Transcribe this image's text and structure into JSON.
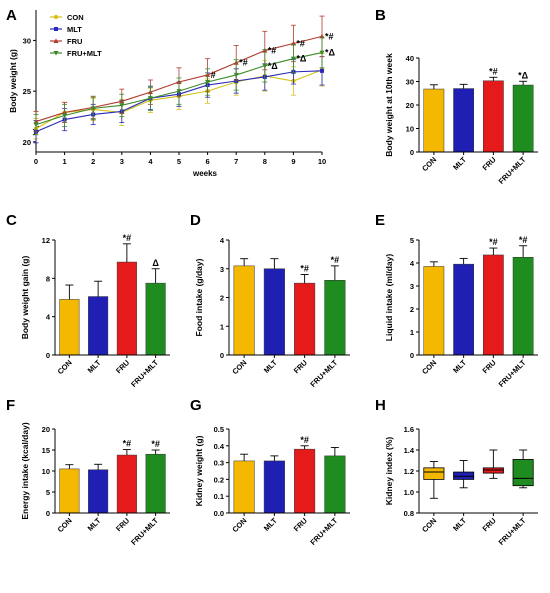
{
  "chart_data": [
    {
      "panel": "A",
      "type": "line",
      "xlabel": "weeks",
      "ylabel": "Body weight (g)",
      "x": [
        0,
        1,
        2,
        3,
        4,
        5,
        6,
        7,
        8,
        9,
        10
      ],
      "xlim": [
        0,
        10
      ],
      "ylim": [
        19,
        33
      ],
      "y_ticks": [
        20,
        25,
        30
      ],
      "axis_break": true,
      "legend": "top-left",
      "series": [
        {
          "name": "CON",
          "color": "#d4c21a",
          "marker": "circle",
          "values": [
            21.3,
            22.9,
            23.2,
            22.9,
            24.1,
            24.5,
            25.0,
            25.9,
            26.5,
            26.0,
            27.1
          ],
          "errors": [
            1.0,
            1.0,
            1.1,
            1.3,
            1.2,
            1.3,
            1.2,
            1.3,
            1.5,
            1.4,
            1.6
          ]
        },
        {
          "name": "MLT",
          "color": "#2a2ab8",
          "marker": "square",
          "values": [
            21.0,
            22.2,
            22.7,
            23.0,
            24.3,
            24.7,
            25.6,
            26.0,
            26.4,
            26.9,
            27.0
          ],
          "errors": [
            1.1,
            1.1,
            1.0,
            1.1,
            1.1,
            1.2,
            1.2,
            1.2,
            1.3,
            1.2,
            1.4
          ]
        },
        {
          "name": "FRU",
          "color": "#b03a2e",
          "marker": "triangle",
          "values": [
            22.0,
            22.9,
            23.4,
            24.0,
            24.9,
            25.9,
            26.6,
            27.8,
            29.0,
            29.7,
            30.4
          ],
          "errors": [
            1.0,
            1.0,
            1.1,
            1.2,
            1.2,
            1.4,
            1.6,
            1.7,
            1.9,
            1.8,
            2.0
          ]
        },
        {
          "name": "FRU+MLT",
          "color": "#3d8a2a",
          "marker": "triangle-down",
          "values": [
            21.7,
            22.6,
            23.3,
            23.6,
            24.3,
            25.0,
            25.9,
            26.6,
            27.5,
            28.2,
            28.8
          ],
          "errors": [
            1.0,
            1.1,
            1.1,
            1.1,
            1.2,
            1.3,
            1.3,
            1.5,
            1.6,
            1.4,
            1.5
          ]
        }
      ],
      "annotations": [
        {
          "series": "FRU",
          "x": 6,
          "text": "#"
        },
        {
          "series": "FRU",
          "x": 7,
          "text": "*#"
        },
        {
          "series": "FRU",
          "x": 8,
          "text": "*#"
        },
        {
          "series": "FRU",
          "x": 9,
          "text": "*#"
        },
        {
          "series": "FRU",
          "x": 10,
          "text": "*#"
        },
        {
          "series": "FRU+MLT",
          "x": 8,
          "text": "*Δ"
        },
        {
          "series": "FRU+MLT",
          "x": 9,
          "text": "*Δ"
        },
        {
          "series": "FRU+MLT",
          "x": 10,
          "text": "*Δ"
        }
      ]
    },
    {
      "panel": "B",
      "type": "bar",
      "ylabel": "Body weight at 10th week",
      "categories": [
        "CON",
        "MLT",
        "FRU",
        "FRU+MLT"
      ],
      "values": [
        26.8,
        27.0,
        30.3,
        28.5
      ],
      "errors": [
        1.8,
        1.8,
        1.5,
        1.6
      ],
      "ylim": [
        0,
        40
      ],
      "y_ticks": [
        0,
        10,
        20,
        30,
        40
      ],
      "colors": [
        "#f5b800",
        "#1f1fb4",
        "#e51b1b",
        "#1e8c1e"
      ],
      "annotations": [
        "",
        "",
        "*#",
        "*Δ"
      ]
    },
    {
      "panel": "C",
      "type": "bar",
      "ylabel": "Body weight gain (g)",
      "categories": [
        "CON",
        "MLT",
        "FRU",
        "FRU+MLT"
      ],
      "values": [
        5.8,
        6.1,
        9.7,
        7.5
      ],
      "errors": [
        1.5,
        1.6,
        1.9,
        1.5
      ],
      "ylim": [
        0,
        12
      ],
      "y_ticks": [
        0,
        4,
        8,
        12
      ],
      "colors": [
        "#f5b800",
        "#1f1fb4",
        "#e51b1b",
        "#1e8c1e"
      ],
      "annotations": [
        "",
        "",
        "*#",
        "Δ"
      ]
    },
    {
      "panel": "D",
      "type": "bar",
      "ylabel": "Food intake (g/day)",
      "categories": [
        "CON",
        "MLT",
        "FRU",
        "FRU+MLT"
      ],
      "values": [
        3.1,
        3.0,
        2.5,
        2.6
      ],
      "errors": [
        0.25,
        0.35,
        0.3,
        0.5
      ],
      "ylim": [
        0,
        4
      ],
      "y_ticks": [
        0,
        1,
        2,
        3,
        4
      ],
      "colors": [
        "#f5b800",
        "#1f1fb4",
        "#e51b1b",
        "#1e8c1e"
      ],
      "annotations": [
        "",
        "",
        "*#",
        "*#"
      ]
    },
    {
      "panel": "E",
      "type": "bar",
      "ylabel": "Liquid intake (ml/day)",
      "categories": [
        "CON",
        "MLT",
        "FRU",
        "FRU+MLT"
      ],
      "values": [
        3.85,
        3.95,
        4.35,
        4.25
      ],
      "errors": [
        0.2,
        0.25,
        0.3,
        0.5
      ],
      "ylim": [
        0,
        5
      ],
      "y_ticks": [
        0,
        1,
        2,
        3,
        4,
        5
      ],
      "colors": [
        "#f5b800",
        "#1f1fb4",
        "#e51b1b",
        "#1e8c1e"
      ],
      "annotations": [
        "",
        "",
        "*#",
        "*#"
      ]
    },
    {
      "panel": "F",
      "type": "bar",
      "ylabel": "Energy intake (kcal/day)",
      "categories": [
        "CON",
        "MLT",
        "FRU",
        "FRU+MLT"
      ],
      "values": [
        10.5,
        10.3,
        13.8,
        14.0
      ],
      "errors": [
        1.0,
        1.3,
        1.3,
        1.0
      ],
      "ylim": [
        0,
        20
      ],
      "y_ticks": [
        0,
        5,
        10,
        15,
        20
      ],
      "colors": [
        "#f5b800",
        "#1f1fb4",
        "#e51b1b",
        "#1e8c1e"
      ],
      "annotations": [
        "",
        "",
        "*#",
        "*#"
      ]
    },
    {
      "panel": "G",
      "type": "bar",
      "ylabel": "Kidney weight (g)",
      "categories": [
        "CON",
        "MLT",
        "FRU",
        "FRU+MLT"
      ],
      "values": [
        0.31,
        0.31,
        0.38,
        0.34
      ],
      "errors": [
        0.04,
        0.03,
        0.02,
        0.05
      ],
      "ylim": [
        0,
        0.5
      ],
      "y_ticks": [
        0.0,
        0.1,
        0.2,
        0.3,
        0.4,
        0.5
      ],
      "colors": [
        "#f5b800",
        "#1f1fb4",
        "#e51b1b",
        "#1e8c1e"
      ],
      "annotations": [
        "",
        "",
        "*#",
        ""
      ]
    },
    {
      "panel": "H",
      "type": "box",
      "ylabel": "Kidney index (%)",
      "categories": [
        "CON",
        "MLT",
        "FRU",
        "FRU+MLT"
      ],
      "boxes": [
        {
          "min": 0.94,
          "q1": 1.12,
          "median": 1.19,
          "q3": 1.23,
          "max": 1.29
        },
        {
          "min": 1.04,
          "q1": 1.12,
          "median": 1.15,
          "q3": 1.19,
          "max": 1.3
        },
        {
          "min": 1.13,
          "q1": 1.18,
          "median": 1.21,
          "q3": 1.23,
          "max": 1.4
        },
        {
          "min": 1.04,
          "q1": 1.06,
          "median": 1.13,
          "q3": 1.31,
          "max": 1.4
        }
      ],
      "ylim": [
        0.8,
        1.6
      ],
      "y_ticks": [
        0.8,
        1.0,
        1.2,
        1.4,
        1.6
      ],
      "colors": [
        "#f5b800",
        "#1f1fb4",
        "#e51b1b",
        "#1e8c1e"
      ]
    }
  ]
}
